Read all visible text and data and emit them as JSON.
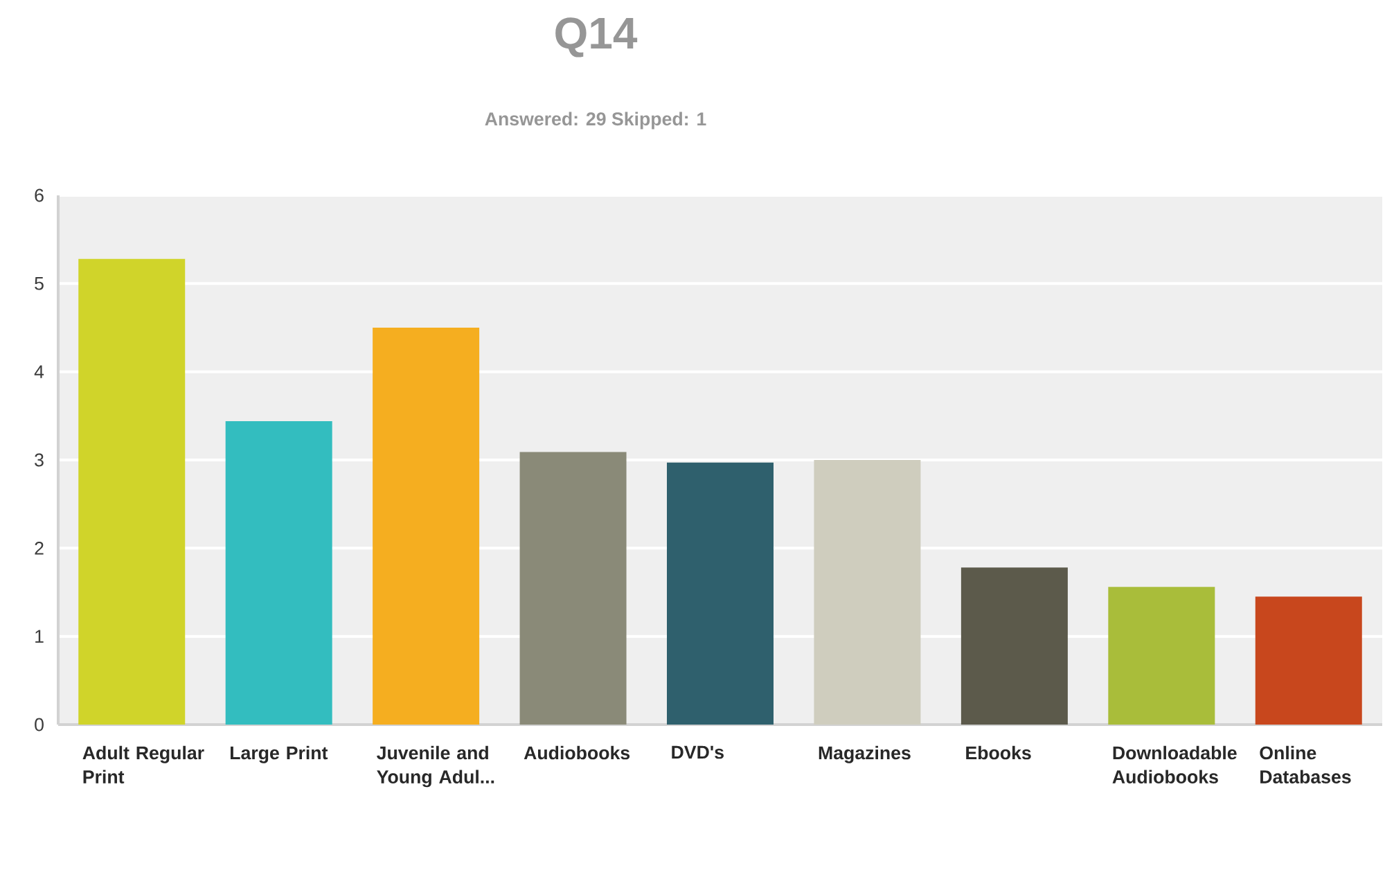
{
  "chart_data": {
    "type": "bar",
    "title": "Q14",
    "subtitle": "Answered: 29    Skipped: 1",
    "categories": [
      "Adult Regular Print",
      "Large Print",
      "Juvenile and Young Adul...",
      "Audiobooks",
      "DVD's",
      "Magazines",
      "Ebooks",
      "Downloadable Audiobooks",
      "Online Databases"
    ],
    "values": [
      5.28,
      3.44,
      4.5,
      3.09,
      2.97,
      3.0,
      1.78,
      1.56,
      1.45
    ],
    "colors": [
      "#d0d42a",
      "#33bdbf",
      "#f5ae20",
      "#8a8a78",
      "#2f606d",
      "#cfcdbe",
      "#5c5a4b",
      "#a9bd3a",
      "#c8471d"
    ],
    "ylim": [
      0,
      6
    ],
    "yticks": [
      0,
      1,
      2,
      3,
      4,
      5,
      6
    ],
    "grid": "y"
  }
}
